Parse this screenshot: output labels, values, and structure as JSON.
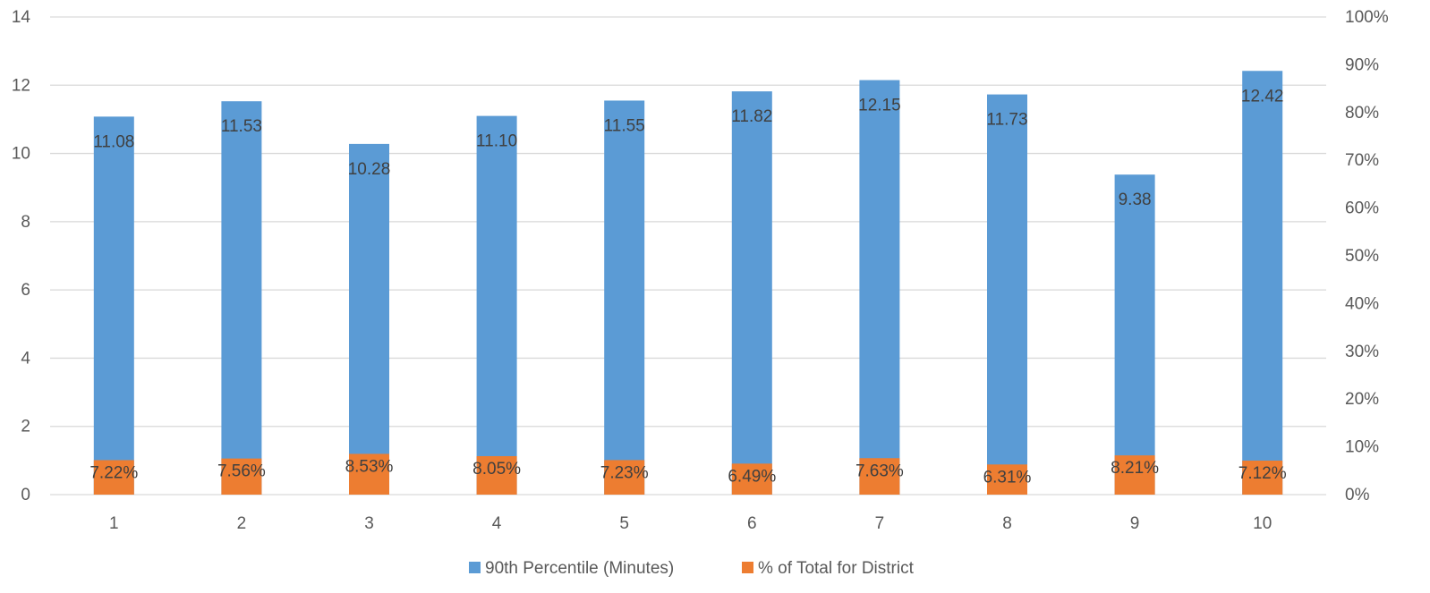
{
  "chart_data": {
    "type": "bar",
    "categories": [
      "1",
      "2",
      "3",
      "4",
      "5",
      "6",
      "7",
      "8",
      "9",
      "10"
    ],
    "series": [
      {
        "name": "90th Percentile (Minutes)",
        "axis": "left",
        "color": "#5b9bd5",
        "values": [
          11.08,
          11.53,
          10.28,
          11.1,
          11.55,
          11.82,
          12.15,
          11.73,
          9.38,
          12.42
        ],
        "labels": [
          "11.08",
          "11.53",
          "10.28",
          "11.10",
          "11.55",
          "11.82",
          "12.15",
          "11.73",
          "9.38",
          "12.42"
        ]
      },
      {
        "name": "% of Total for District",
        "axis": "right",
        "color": "#ed7d31",
        "values": [
          7.22,
          7.56,
          8.53,
          8.05,
          7.23,
          6.49,
          7.63,
          6.31,
          8.21,
          7.12
        ],
        "labels": [
          "7.22%",
          "7.56%",
          "8.53%",
          "8.05%",
          "7.23%",
          "6.49%",
          "7.63%",
          "6.31%",
          "8.21%",
          "7.12%"
        ]
      }
    ],
    "y_left": {
      "ylim": [
        0,
        14
      ],
      "ticks": [
        0,
        2,
        4,
        6,
        8,
        10,
        12,
        14
      ],
      "tick_labels": [
        "0",
        "2",
        "4",
        "6",
        "8",
        "10",
        "12",
        "14"
      ]
    },
    "y_right": {
      "ylim": [
        0,
        100
      ],
      "ticks": [
        0,
        10,
        20,
        30,
        40,
        50,
        60,
        70,
        80,
        90,
        100
      ],
      "tick_labels": [
        "0%",
        "10%",
        "20%",
        "30%",
        "40%",
        "50%",
        "60%",
        "70%",
        "80%",
        "90%",
        "100%"
      ]
    },
    "grid": true,
    "legend_position": "bottom"
  }
}
